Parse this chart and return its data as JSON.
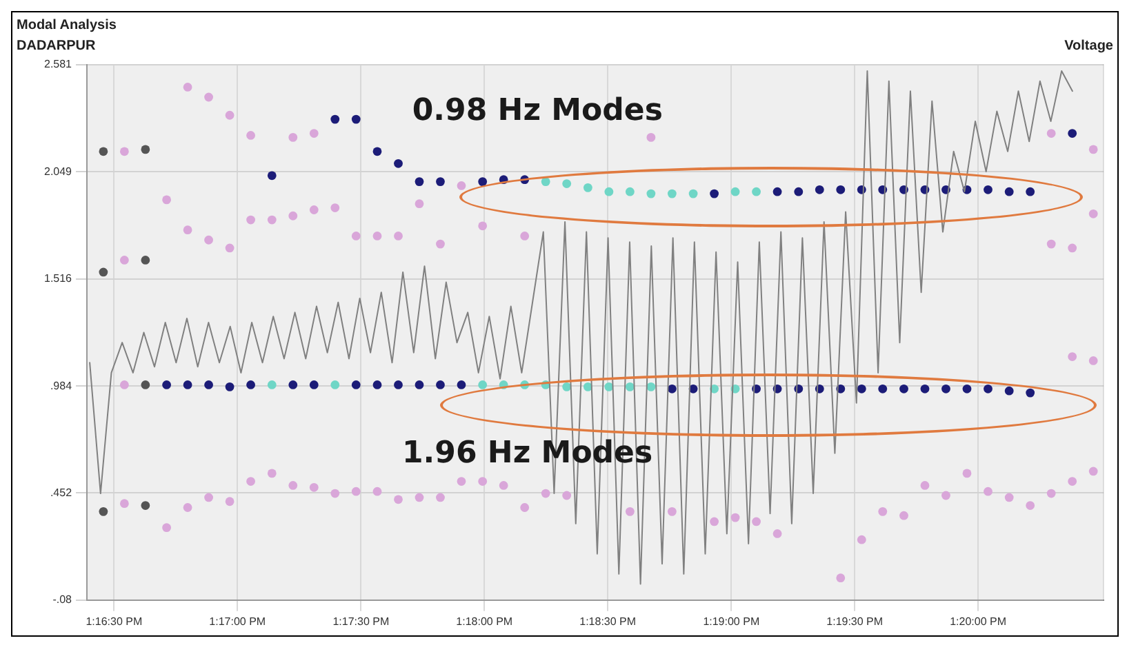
{
  "chart_data": {
    "type": "scatter",
    "title": "Modal Analysis",
    "ylabel": "DADARPUR",
    "y2label": "Voltage",
    "annotations": [
      "0.98 Hz Modes",
      "1.96 Hz Modes"
    ],
    "xlim": [
      13.27317,
      13.3418
    ],
    "ylim": [
      -0.08,
      2.581
    ],
    "xticks": [
      {
        "value": 13.275,
        "label": "1:16:30 PM"
      },
      {
        "value": 13.28333,
        "label": "1:17:00 PM"
      },
      {
        "value": 13.29167,
        "label": "1:17:30 PM"
      },
      {
        "value": 13.3,
        "label": "1:18:00 PM"
      },
      {
        "value": 13.30833,
        "label": "1:18:30 PM"
      },
      {
        "value": 13.31667,
        "label": "1:19:00 PM"
      },
      {
        "value": 13.325,
        "label": "1:19:30 PM"
      },
      {
        "value": 13.33333,
        "label": "1:20:00 PM"
      }
    ],
    "yticks": [
      {
        "value": -0.08,
        "label": "-.08"
      },
      {
        "value": 0.452,
        "label": ".452"
      },
      {
        "value": 0.984,
        "label": ".984"
      },
      1.516,
      2.049,
      2.581
    ],
    "grid": true,
    "marker": "circle",
    "series": [
      {
        "type": "line",
        "marker": "none",
        "color": "#808080",
        "x": [
          13.27336,
          13.27409,
          13.27482,
          13.27555,
          13.27628,
          13.27701,
          13.27773,
          13.27846,
          13.27919,
          13.27992,
          13.28065,
          13.28138,
          13.28211,
          13.28284,
          13.28357,
          13.2843,
          13.28502,
          13.28575,
          13.28648,
          13.28721,
          13.28794,
          13.28867,
          13.2894,
          13.29013,
          13.29086,
          13.29159,
          13.29231,
          13.29304,
          13.29377,
          13.2945,
          13.29523,
          13.29596,
          13.29669,
          13.29742,
          13.29815,
          13.29888,
          13.2996,
          13.30033,
          13.30106,
          13.30179,
          13.30252,
          13.30325,
          13.30398,
          13.30471,
          13.30544,
          13.30617,
          13.30689,
          13.30762,
          13.30835,
          13.30908,
          13.30981,
          13.31054,
          13.31127,
          13.312,
          13.31273,
          13.31346,
          13.31418,
          13.31491,
          13.31564,
          13.31637,
          13.3171,
          13.31783,
          13.31856,
          13.31929,
          13.32002,
          13.32075,
          13.32147,
          13.3222,
          13.32293,
          13.32366,
          13.32439,
          13.32512,
          13.32585,
          13.32658,
          13.32731,
          13.32804,
          13.32876,
          13.32949,
          13.33022,
          13.33095,
          13.33168,
          13.33241,
          13.33314,
          13.33387,
          13.3346,
          13.33533,
          13.33605,
          13.33678,
          13.33751,
          13.33824,
          13.33897,
          13.3397
        ],
        "values": [
          1.1,
          0.45,
          1.05,
          1.2,
          1.05,
          1.25,
          1.08,
          1.3,
          1.1,
          1.32,
          1.08,
          1.3,
          1.1,
          1.28,
          1.05,
          1.3,
          1.1,
          1.33,
          1.12,
          1.35,
          1.12,
          1.38,
          1.15,
          1.4,
          1.12,
          1.42,
          1.15,
          1.45,
          1.1,
          1.55,
          1.15,
          1.58,
          1.12,
          1.5,
          1.2,
          1.35,
          1.05,
          1.33,
          1.02,
          1.38,
          1.05,
          1.4,
          1.75,
          0.45,
          1.8,
          0.3,
          1.75,
          0.15,
          1.72,
          0.05,
          1.7,
          0.0,
          1.68,
          0.1,
          1.72,
          0.05,
          1.7,
          0.15,
          1.65,
          0.25,
          1.6,
          0.2,
          1.7,
          0.35,
          1.75,
          0.3,
          1.72,
          0.45,
          1.8,
          0.65,
          1.85,
          0.9,
          2.55,
          1.05,
          2.5,
          1.2,
          2.45,
          1.45,
          2.4,
          1.75,
          2.15,
          1.95,
          2.3,
          2.05,
          2.35,
          2.15,
          2.45,
          2.2,
          2.5,
          2.3,
          2.55,
          2.45
        ]
      },
      {
        "color": "#1c1c78",
        "x": [
          13.27855,
          13.27997,
          13.28139,
          13.28281,
          13.28423,
          13.28566,
          13.28708,
          13.2885,
          13.28992,
          13.29134,
          13.29134,
          13.29277,
          13.29277,
          13.29419,
          13.29419,
          13.29561,
          13.29561,
          13.29703,
          13.29703,
          13.29845,
          13.29988,
          13.3013,
          13.30272,
          13.31267,
          13.3141,
          13.31552,
          13.31836,
          13.31978,
          13.31978,
          13.32121,
          13.32121,
          13.32263,
          13.32263,
          13.32405,
          13.32405,
          13.32547,
          13.32547,
          13.32689,
          13.32689,
          13.32832,
          13.32832,
          13.32974,
          13.32974,
          13.33116,
          13.33116,
          13.33258,
          13.33258,
          13.334,
          13.334,
          13.33543,
          13.33543,
          13.33685,
          13.33685,
          13.33969
        ],
        "values": [
          0.99,
          0.99,
          0.99,
          0.98,
          0.99,
          2.03,
          0.99,
          0.99,
          2.31,
          2.31,
          0.99,
          2.15,
          0.99,
          2.09,
          0.99,
          2.0,
          0.99,
          2.0,
          0.99,
          0.99,
          2.0,
          2.01,
          2.01,
          0.97,
          0.97,
          1.94,
          0.97,
          1.95,
          0.97,
          1.95,
          0.97,
          1.96,
          0.97,
          1.96,
          0.97,
          1.96,
          0.97,
          1.96,
          0.97,
          1.96,
          0.97,
          1.96,
          0.97,
          1.96,
          0.97,
          1.96,
          0.97,
          1.96,
          0.97,
          1.95,
          0.96,
          1.95,
          0.95,
          2.24
        ]
      },
      {
        "color": "#6fd6c6",
        "x": [
          13.28566,
          13.28992,
          13.29988,
          13.3013,
          13.30272,
          13.30414,
          13.30414,
          13.30556,
          13.30556,
          13.30699,
          13.30699,
          13.30841,
          13.30841,
          13.30983,
          13.30983,
          13.31125,
          13.31125,
          13.31267,
          13.3141,
          13.31552,
          13.31694,
          13.31694,
          13.31836
        ],
        "values": [
          0.99,
          0.99,
          0.99,
          0.99,
          0.99,
          2.0,
          0.99,
          1.99,
          0.98,
          1.97,
          0.98,
          1.95,
          0.98,
          1.95,
          0.98,
          1.94,
          0.98,
          1.94,
          1.94,
          0.97,
          1.95,
          0.97,
          1.95
        ]
      },
      {
        "color": "#555555",
        "x": [
          13.27428,
          13.27428,
          13.27428,
          13.27712,
          13.27712,
          13.27712,
          13.27712
        ],
        "values": [
          2.15,
          1.55,
          0.36,
          2.16,
          1.61,
          0.99,
          0.39
        ]
      },
      {
        "color": "#d9a6d9",
        "x": [
          13.2757,
          13.2757,
          13.2757,
          13.2757,
          13.27855,
          13.27855,
          13.27997,
          13.27997,
          13.27997,
          13.28139,
          13.28139,
          13.28139,
          13.28281,
          13.28281,
          13.28281,
          13.28423,
          13.28423,
          13.28423,
          13.28566,
          13.28566,
          13.28708,
          13.28708,
          13.28708,
          13.2885,
          13.2885,
          13.2885,
          13.28992,
          13.28992,
          13.29134,
          13.29134,
          13.29277,
          13.29277,
          13.29419,
          13.29419,
          13.29561,
          13.29561,
          13.29703,
          13.29703,
          13.29845,
          13.29845,
          13.29988,
          13.29988,
          13.3013,
          13.30272,
          13.30272,
          13.30414,
          13.30556,
          13.30983,
          13.31125,
          13.31267,
          13.31552,
          13.31694,
          13.31836,
          13.31978,
          13.32405,
          13.32547,
          13.32689,
          13.32832,
          13.32974,
          13.33116,
          13.33258,
          13.334,
          13.33543,
          13.33685,
          13.33827,
          13.33827,
          13.33827,
          13.33969,
          13.33969,
          13.33969,
          13.34111,
          13.34111,
          13.34111,
          13.34111
        ],
        "values": [
          2.15,
          1.61,
          0.99,
          0.4,
          1.91,
          0.28,
          2.47,
          1.76,
          0.38,
          2.42,
          1.71,
          0.43,
          2.33,
          1.67,
          0.41,
          2.23,
          1.81,
          0.51,
          1.81,
          0.55,
          2.22,
          1.83,
          0.49,
          2.24,
          1.86,
          0.48,
          1.87,
          0.45,
          1.73,
          0.46,
          1.73,
          0.46,
          1.73,
          0.42,
          1.89,
          0.43,
          1.69,
          0.43,
          1.98,
          0.51,
          1.78,
          0.51,
          0.49,
          1.73,
          0.38,
          0.45,
          0.44,
          0.36,
          2.22,
          0.36,
          0.31,
          0.33,
          0.31,
          0.25,
          0.03,
          0.22,
          0.36,
          0.34,
          0.49,
          0.44,
          0.55,
          0.46,
          0.43,
          0.39,
          2.24,
          1.69,
          0.45,
          1.67,
          1.13,
          0.51,
          2.16,
          1.84,
          1.11,
          0.56
        ]
      }
    ]
  }
}
